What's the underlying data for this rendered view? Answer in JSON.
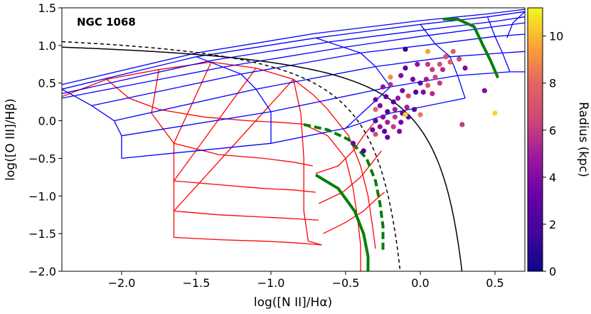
{
  "chart_data": {
    "type": "scatter",
    "title": "NGC 1068",
    "xlabel": "log([N II]/Hα)",
    "ylabel": "log([O III]/Hβ)",
    "xlim": [
      -2.4,
      0.7
    ],
    "ylim": [
      -2.0,
      1.5
    ],
    "x_ticks": [
      -2.0,
      -1.5,
      -1.0,
      -0.5,
      0.0,
      0.5
    ],
    "x_tick_labels": [
      "−2.0",
      "−1.5",
      "−1.0",
      "−0.5",
      "0.0",
      "0.5"
    ],
    "y_ticks": [
      -2.0,
      -1.5,
      -1.0,
      -0.5,
      0.0,
      0.5,
      1.0,
      1.5
    ],
    "y_tick_labels": [
      "−2.0",
      "−1.5",
      "−1.0",
      "−0.5",
      "0.0",
      "0.5",
      "1.0",
      "1.5"
    ],
    "colorbar": {
      "label": "Radius (kpc)",
      "colormap": "plasma",
      "range": [
        0,
        11.2
      ],
      "ticks": [
        0,
        2,
        4,
        6,
        8,
        10
      ],
      "tick_labels": [
        "0",
        "2",
        "4",
        "6",
        "8",
        "10"
      ]
    },
    "demarcation_lines": [
      {
        "name": "Kewley 2001 maximum starburst",
        "style": "solid",
        "color": "#000000",
        "formula": "0.61/(x-0.47)+1.19"
      },
      {
        "name": "Kauffmann 2003",
        "style": "dashed",
        "color": "#000000",
        "formula": "0.61/(x-0.05)+1.30"
      }
    ],
    "model_grids": [
      {
        "name": "star-forming (HII) model grid",
        "color": "#ff0000",
        "lines": [
          [
            [
              -2.4,
              0.32
            ],
            [
              -2.1,
              0.55
            ],
            [
              -1.75,
              0.68
            ],
            [
              -1.4,
              0.78
            ],
            [
              -1.1,
              0.7
            ],
            [
              -0.85,
              0.55
            ],
            [
              -0.72,
              0.35
            ]
          ],
          [
            [
              -2.1,
              0.55
            ],
            [
              -1.95,
              0.3
            ],
            [
              -1.75,
              0.15
            ],
            [
              -1.45,
              0.05
            ],
            [
              -1.15,
              0.0
            ],
            [
              -0.95,
              -0.02
            ],
            [
              -0.75,
              -0.05
            ]
          ],
          [
            [
              -1.75,
              0.68
            ],
            [
              -1.8,
              0.1
            ],
            [
              -1.65,
              -0.3
            ],
            [
              -1.35,
              -0.45
            ],
            [
              -1.05,
              -0.5
            ],
            [
              -0.85,
              -0.55
            ],
            [
              -0.72,
              -0.6
            ]
          ],
          [
            [
              -1.4,
              0.78
            ],
            [
              -1.65,
              -0.3
            ],
            [
              -1.65,
              -0.8
            ],
            [
              -1.35,
              -0.85
            ],
            [
              -1.05,
              -0.9
            ],
            [
              -0.85,
              -0.92
            ],
            [
              -0.7,
              -0.95
            ]
          ],
          [
            [
              -1.1,
              0.7
            ],
            [
              -1.65,
              -0.8
            ],
            [
              -1.65,
              -1.2
            ],
            [
              -1.35,
              -1.25
            ],
            [
              -1.05,
              -1.28
            ],
            [
              -0.85,
              -1.3
            ],
            [
              -0.68,
              -1.32
            ]
          ],
          [
            [
              -0.85,
              0.55
            ],
            [
              -1.65,
              -1.2
            ],
            [
              -1.65,
              -1.55
            ],
            [
              -1.35,
              -1.58
            ],
            [
              -1.05,
              -1.6
            ],
            [
              -0.85,
              -1.62
            ],
            [
              -0.66,
              -1.65
            ]
          ],
          [
            [
              -0.85,
              0.55
            ],
            [
              -0.8,
              0.1
            ],
            [
              -0.78,
              -0.5
            ],
            [
              -0.78,
              -1.2
            ],
            [
              -0.75,
              -1.6
            ],
            [
              -0.66,
              -1.65
            ]
          ],
          [
            [
              -0.72,
              0.35
            ],
            [
              -0.62,
              0.15
            ],
            [
              -0.48,
              -0.2
            ],
            [
              -0.4,
              -0.6
            ],
            [
              -0.35,
              -1.0
            ],
            [
              -0.32,
              -1.4
            ],
            [
              -0.3,
              -1.7
            ]
          ],
          [
            [
              -0.78,
              -0.05
            ],
            [
              -0.62,
              -0.2
            ],
            [
              -0.5,
              -0.5
            ],
            [
              -0.45,
              -0.9
            ],
            [
              -0.42,
              -1.3
            ],
            [
              -0.4,
              -1.65
            ],
            [
              -0.4,
              -2.0
            ]
          ],
          [
            [
              -0.7,
              -0.7
            ],
            [
              -0.55,
              -0.6
            ],
            [
              -0.45,
              -0.4
            ],
            [
              -0.38,
              -0.2
            ],
            [
              -0.3,
              0.0
            ]
          ],
          [
            [
              -0.68,
              -1.1
            ],
            [
              -0.52,
              -0.95
            ],
            [
              -0.4,
              -0.75
            ],
            [
              -0.32,
              -0.55
            ],
            [
              -0.26,
              -0.4
            ]
          ],
          [
            [
              -0.65,
              -1.5
            ],
            [
              -0.5,
              -1.35
            ],
            [
              -0.38,
              -1.2
            ],
            [
              -0.3,
              -1.05
            ],
            [
              -0.24,
              -0.95
            ]
          ]
        ]
      },
      {
        "name": "AGN model grid",
        "color": "#0000ff",
        "lines": [
          [
            [
              -2.4,
              0.42
            ],
            [
              -1.5,
              0.85
            ],
            [
              -0.7,
              1.1
            ],
            [
              0.0,
              1.28
            ],
            [
              0.45,
              1.38
            ],
            [
              0.7,
              1.45
            ]
          ],
          [
            [
              -2.4,
              0.48
            ],
            [
              -1.5,
              0.9
            ],
            [
              -0.7,
              1.16
            ],
            [
              0.0,
              1.33
            ],
            [
              0.45,
              1.42
            ],
            [
              0.7,
              1.48
            ]
          ],
          [
            [
              -2.4,
              0.36
            ],
            [
              -1.4,
              0.8
            ],
            [
              -0.6,
              1.05
            ],
            [
              0.0,
              1.2
            ],
            [
              0.5,
              1.32
            ],
            [
              0.7,
              1.38
            ]
          ],
          [
            [
              -2.4,
              0.3
            ],
            [
              -1.3,
              0.72
            ],
            [
              -0.5,
              0.98
            ],
            [
              0.0,
              1.12
            ],
            [
              0.5,
              1.25
            ],
            [
              0.7,
              1.3
            ]
          ],
          [
            [
              -2.2,
              0.2
            ],
            [
              -1.2,
              0.62
            ],
            [
              -0.4,
              0.9
            ],
            [
              0.1,
              1.02
            ],
            [
              0.5,
              1.12
            ],
            [
              0.7,
              1.15
            ]
          ],
          [
            [
              -2.05,
              0.0
            ],
            [
              -1.1,
              0.42
            ],
            [
              -0.3,
              0.72
            ],
            [
              0.2,
              0.85
            ],
            [
              0.55,
              0.9
            ],
            [
              0.7,
              0.92
            ]
          ],
          [
            [
              -2.0,
              -0.2
            ],
            [
              -1.0,
              0.12
            ],
            [
              -0.2,
              0.45
            ],
            [
              0.25,
              0.6
            ],
            [
              0.6,
              0.65
            ],
            [
              0.7,
              0.65
            ]
          ],
          [
            [
              -2.0,
              -0.5
            ],
            [
              -1.0,
              -0.3
            ],
            [
              -0.5,
              -0.1
            ],
            [
              -0.2,
              0.1
            ],
            [
              0.3,
              0.3
            ]
          ],
          [
            [
              -2.4,
              0.42
            ],
            [
              -2.2,
              0.2
            ],
            [
              -2.05,
              0.0
            ],
            [
              -2.0,
              -0.2
            ],
            [
              -2.0,
              -0.5
            ]
          ],
          [
            [
              -1.5,
              0.85
            ],
            [
              -1.2,
              0.62
            ],
            [
              -1.1,
              0.42
            ],
            [
              -1.0,
              0.12
            ],
            [
              -1.0,
              -0.3
            ]
          ],
          [
            [
              -0.7,
              1.1
            ],
            [
              -0.4,
              0.9
            ],
            [
              -0.3,
              0.72
            ],
            [
              -0.2,
              0.45
            ],
            [
              -0.5,
              -0.1
            ]
          ],
          [
            [
              0.0,
              1.28
            ],
            [
              0.1,
              1.02
            ],
            [
              0.2,
              0.85
            ],
            [
              0.25,
              0.6
            ],
            [
              0.3,
              0.3
            ]
          ],
          [
            [
              0.45,
              1.38
            ],
            [
              0.5,
              1.12
            ],
            [
              0.55,
              0.9
            ],
            [
              0.6,
              0.65
            ]
          ],
          [
            [
              0.7,
              1.45
            ],
            [
              0.62,
              1.3
            ],
            [
              0.58,
              1.1
            ]
          ]
        ]
      }
    ],
    "model_highlights": [
      {
        "name": "HII grid edge (dashed green)",
        "color": "#008000",
        "style": "dashed",
        "points": [
          [
            -0.78,
            -0.05
          ],
          [
            -0.62,
            -0.12
          ],
          [
            -0.48,
            -0.25
          ],
          [
            -0.36,
            -0.5
          ],
          [
            -0.3,
            -0.8
          ],
          [
            -0.27,
            -1.1
          ],
          [
            -0.25,
            -1.4
          ],
          [
            -0.25,
            -1.75
          ]
        ]
      },
      {
        "name": "HII grid curve (green)",
        "color": "#008000",
        "style": "solid",
        "points": [
          [
            -0.7,
            -0.72
          ],
          [
            -0.55,
            -0.9
          ],
          [
            -0.44,
            -1.2
          ],
          [
            -0.38,
            -1.5
          ],
          [
            -0.35,
            -1.8
          ],
          [
            -0.35,
            -2.0
          ]
        ]
      },
      {
        "name": "AGN grid curve (green)",
        "color": "#008000",
        "style": "solid",
        "points": [
          [
            0.15,
            1.35
          ],
          [
            0.25,
            1.35
          ],
          [
            0.36,
            1.25
          ],
          [
            0.42,
            1.0
          ],
          [
            0.47,
            0.8
          ],
          [
            0.52,
            0.57
          ]
        ]
      }
    ],
    "points": [
      {
        "x": -0.1,
        "y": 0.95,
        "r": 1.0
      },
      {
        "x": 0.05,
        "y": 0.92,
        "r": 9.5
      },
      {
        "x": 0.22,
        "y": 0.92,
        "r": 7.5
      },
      {
        "x": 0.17,
        "y": 0.85,
        "r": 7.0
      },
      {
        "x": 0.26,
        "y": 0.82,
        "r": 6.5
      },
      {
        "x": 0.2,
        "y": 0.78,
        "r": 7.5
      },
      {
        "x": -0.02,
        "y": 0.75,
        "r": 4.5
      },
      {
        "x": 0.05,
        "y": 0.75,
        "r": 6.0
      },
      {
        "x": 0.13,
        "y": 0.75,
        "r": 7.0
      },
      {
        "x": -0.1,
        "y": 0.7,
        "r": 2.5
      },
      {
        "x": 0.08,
        "y": 0.68,
        "r": 6.0
      },
      {
        "x": 0.15,
        "y": 0.68,
        "r": 5.5
      },
      {
        "x": 0.3,
        "y": 0.7,
        "r": 4.0
      },
      {
        "x": -0.2,
        "y": 0.58,
        "r": 9.0
      },
      {
        "x": -0.13,
        "y": 0.6,
        "r": 4.0
      },
      {
        "x": -0.05,
        "y": 0.55,
        "r": 3.5
      },
      {
        "x": 0.04,
        "y": 0.55,
        "r": 5.0
      },
      {
        "x": 0.1,
        "y": 0.58,
        "r": 6.5
      },
      {
        "x": 0.0,
        "y": 0.5,
        "r": 3.0
      },
      {
        "x": 0.05,
        "y": 0.47,
        "r": 7.5
      },
      {
        "x": 0.13,
        "y": 0.5,
        "r": 6.0
      },
      {
        "x": -0.2,
        "y": 0.48,
        "r": 5.5
      },
      {
        "x": -0.25,
        "y": 0.45,
        "r": 4.5
      },
      {
        "x": -0.12,
        "y": 0.4,
        "r": 3.5
      },
      {
        "x": -0.03,
        "y": 0.38,
        "r": 2.0
      },
      {
        "x": 0.02,
        "y": 0.38,
        "r": 4.0
      },
      {
        "x": 0.08,
        "y": 0.36,
        "r": 5.5
      },
      {
        "x": -0.08,
        "y": 0.33,
        "r": 6.5
      },
      {
        "x": -0.23,
        "y": 0.32,
        "r": 3.0
      },
      {
        "x": -0.15,
        "y": 0.3,
        "r": 4.5
      },
      {
        "x": -0.3,
        "y": 0.28,
        "r": 3.0
      },
      {
        "x": -0.18,
        "y": 0.25,
        "r": 2.5
      },
      {
        "x": -0.27,
        "y": 0.2,
        "r": 4.0
      },
      {
        "x": -0.09,
        "y": 0.18,
        "r": 5.0
      },
      {
        "x": -0.04,
        "y": 0.15,
        "r": 2.5
      },
      {
        "x": -0.17,
        "y": 0.15,
        "r": 5.0
      },
      {
        "x": -0.3,
        "y": 0.15,
        "r": 8.0
      },
      {
        "x": -0.22,
        "y": 0.12,
        "r": 2.0
      },
      {
        "x": -0.12,
        "y": 0.1,
        "r": 3.0
      },
      {
        "x": 0.0,
        "y": 0.08,
        "r": 8.5
      },
      {
        "x": -0.25,
        "y": 0.05,
        "r": 4.0
      },
      {
        "x": -0.17,
        "y": 0.05,
        "r": 6.0
      },
      {
        "x": -0.08,
        "y": 0.05,
        "r": 3.0
      },
      {
        "x": -0.3,
        "y": 0.0,
        "r": 2.5
      },
      {
        "x": -0.22,
        "y": -0.02,
        "r": 5.0
      },
      {
        "x": -0.13,
        "y": -0.02,
        "r": 3.5
      },
      {
        "x": -0.27,
        "y": -0.08,
        "r": 4.5
      },
      {
        "x": -0.18,
        "y": -0.08,
        "r": 6.0
      },
      {
        "x": -0.32,
        "y": -0.12,
        "r": 3.0
      },
      {
        "x": -0.24,
        "y": -0.14,
        "r": 2.5
      },
      {
        "x": -0.14,
        "y": -0.14,
        "r": 4.0
      },
      {
        "x": -0.22,
        "y": -0.22,
        "r": 3.0
      },
      {
        "x": -0.3,
        "y": -0.18,
        "r": 7.0
      },
      {
        "x": -0.1,
        "y": 0.08,
        "r": 10.5
      },
      {
        "x": 0.43,
        "y": 0.4,
        "r": 4.0
      },
      {
        "x": 0.5,
        "y": 0.1,
        "r": 10.5
      },
      {
        "x": 0.28,
        "y": -0.05,
        "r": 6.0
      },
      {
        "x": -0.38,
        "y": -0.4,
        "r": 2.0
      },
      {
        "x": -0.45,
        "y": -0.3,
        "r": 3.5
      }
    ]
  }
}
